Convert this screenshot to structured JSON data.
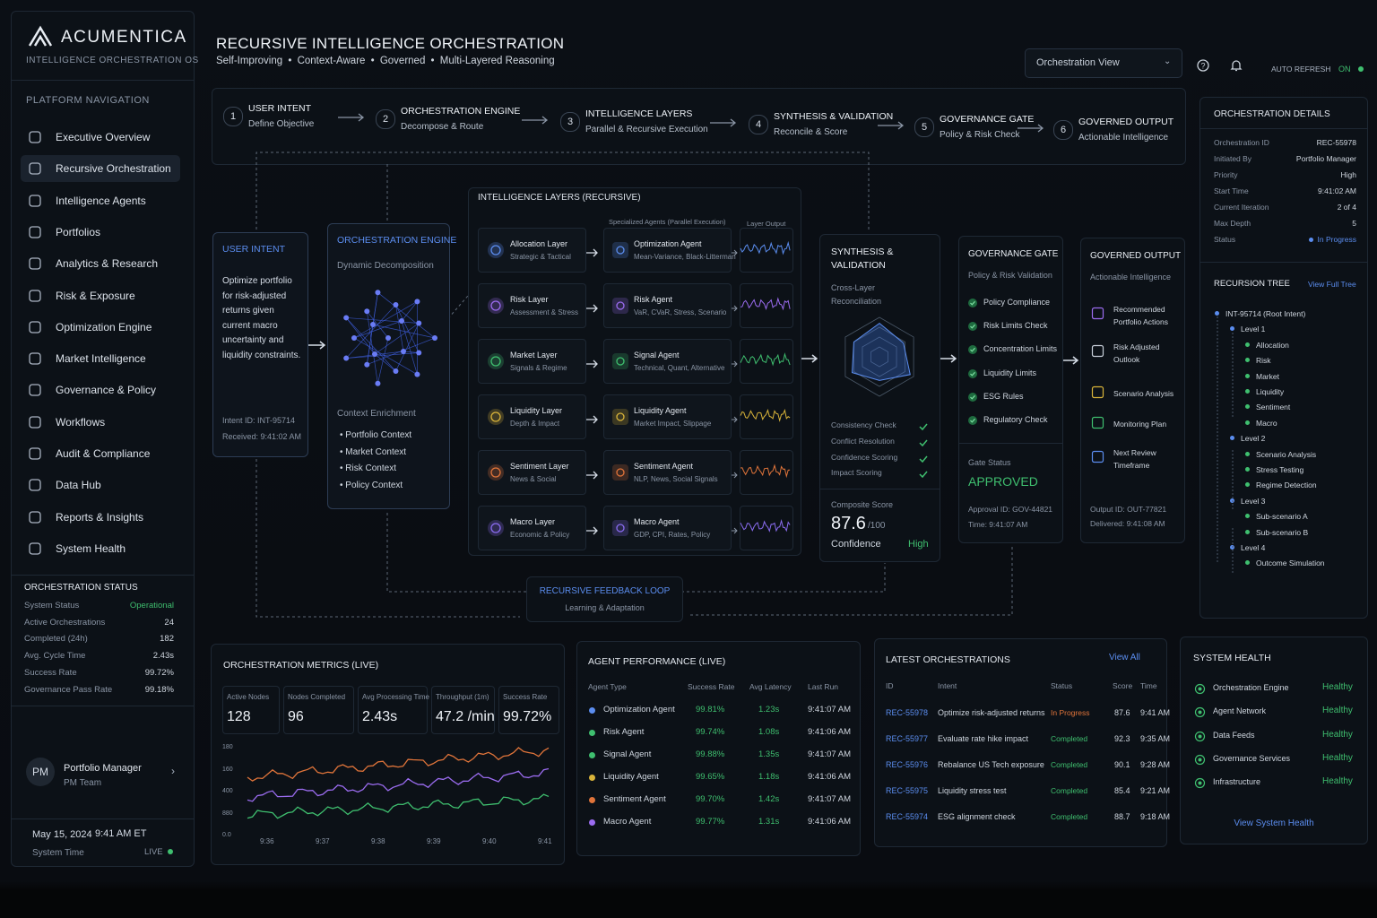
{
  "brand": {
    "name": "ACUMENTICA",
    "tagline": "INTELLIGENCE ORCHESTRATION OS"
  },
  "header": {
    "title": "RECURSIVE INTELLIGENCE ORCHESTRATION",
    "subtitle": [
      "Self-Improving",
      "Context-Aware",
      "Governed",
      "Multi-Layered Reasoning"
    ],
    "view_select": "Orchestration View",
    "auto_refresh": "AUTO REFRESH",
    "auto_refresh_state": "ON"
  },
  "nav": {
    "title": "PLATFORM NAVIGATION",
    "active": 1,
    "items": [
      "Executive Overview",
      "Recursive Orchestration",
      "Intelligence Agents",
      "Portfolios",
      "Analytics & Research",
      "Risk & Exposure",
      "Optimization Engine",
      "Market Intelligence",
      "Governance & Policy",
      "Workflows",
      "Audit & Compliance",
      "Data Hub",
      "Reports & Insights",
      "System Health"
    ]
  },
  "orchestration_status": {
    "title": "ORCHESTRATION STATUS",
    "rows": [
      [
        "System Status",
        "Operational"
      ],
      [
        "Active Orchestrations",
        "24"
      ],
      [
        "Completed (24h)",
        "182"
      ],
      [
        "Avg. Cycle Time",
        "2.43s"
      ],
      [
        "Success Rate",
        "99.72%"
      ],
      [
        "Governance Pass Rate",
        "99.18%"
      ]
    ]
  },
  "user": {
    "initials": "PM",
    "name": "Portfolio Manager",
    "team": "PM Team"
  },
  "system_time": {
    "date": "May 15, 2024",
    "time": "9:41 AM ET",
    "label": "System Time",
    "live": "LIVE"
  },
  "pipeline": [
    {
      "num": 1,
      "title": "USER INTENT",
      "sub": "Define Objective"
    },
    {
      "num": 2,
      "title": "ORCHESTRATION ENGINE",
      "sub": "Decompose & Route"
    },
    {
      "num": 3,
      "title": "INTELLIGENCE LAYERS",
      "sub": "Parallel & Recursive Execution"
    },
    {
      "num": 4,
      "title": "SYNTHESIS & VALIDATION",
      "sub": "Reconcile & Score"
    },
    {
      "num": 5,
      "title": "GOVERNANCE GATE",
      "sub": "Policy & Risk Check"
    },
    {
      "num": 6,
      "title": "GOVERNED OUTPUT",
      "sub": "Actionable Intelligence"
    }
  ],
  "user_intent": {
    "title": "USER INTENT",
    "text": "Optimize portfolio for risk-adjusted returns given current macro uncertainty and liquidity constraints.",
    "intent_id": "Intent ID:  INT-95714",
    "received": "Received:  9:41:02 AM"
  },
  "orchestration_engine": {
    "title": "ORCHESTRATION ENGINE",
    "subtitle": "Dynamic Decomposition",
    "context_title": "Context Enrichment",
    "context_items": [
      "Portfolio Context",
      "Market Context",
      "Risk Context",
      "Policy Context"
    ]
  },
  "intelligence_layers": {
    "title": "INTELLIGENCE LAYERS (RECURSIVE)",
    "agents_header": "Specialized Agents (Parallel Execution)",
    "output_header": "Layer Output",
    "rows": [
      {
        "layer": "Allocation Layer",
        "layer_sub": "Strategic & Tactical",
        "agent": "Optimization Agent",
        "agent_sub": "Mean-Variance, Black-Litterman",
        "color": "#5b8def"
      },
      {
        "layer": "Risk Layer",
        "layer_sub": "Assessment & Stress",
        "agent": "Risk Agent",
        "agent_sub": "VaR, CVaR, Stress, Scenario",
        "color": "#9b6cf0"
      },
      {
        "layer": "Market Layer",
        "layer_sub": "Signals & Regime",
        "agent": "Signal Agent",
        "agent_sub": "Technical, Quant, Alternative",
        "color": "#3fbf6f"
      },
      {
        "layer": "Liquidity Layer",
        "layer_sub": "Depth & Impact",
        "agent": "Liquidity Agent",
        "agent_sub": "Market Impact, Slippage",
        "color": "#d9b43a"
      },
      {
        "layer": "Sentiment Layer",
        "layer_sub": "News & Social",
        "agent": "Sentiment Agent",
        "agent_sub": "NLP, News, Social Signals",
        "color": "#e0743a"
      },
      {
        "layer": "Macro Layer",
        "layer_sub": "Economic & Policy",
        "agent": "Macro Agent",
        "agent_sub": "GDP, CPI, Rates, Policy",
        "color": "#8a6cf0"
      }
    ]
  },
  "synthesis": {
    "title": "SYNTHESIS & VALIDATION",
    "subtitle": "Cross-Layer Reconciliation",
    "checks": [
      "Consistency Check",
      "Conflict Resolution",
      "Confidence Scoring",
      "Impact Scoring"
    ],
    "score_label": "Composite Score",
    "score": 87.6,
    "score_max": "/100",
    "confidence_label": "Confidence",
    "confidence": "High"
  },
  "governance": {
    "title": "GOVERNANCE GATE",
    "subtitle": "Policy & Risk Validation",
    "checks": [
      "Policy Compliance",
      "Risk Limits Check",
      "Concentration Limits",
      "Liquidity Limits",
      "ESG Rules",
      "Regulatory Check"
    ],
    "gate_status_label": "Gate Status",
    "gate_status": "APPROVED",
    "approval_id": "Approval ID:  GOV-44821",
    "time": "Time:  9:41:07 AM"
  },
  "output": {
    "title": "GOVERNED OUTPUT",
    "subtitle": "Actionable Intelligence",
    "items": [
      "Recommended Portfolio Actions",
      "Risk Adjusted Outlook",
      "Scenario Analysis",
      "Monitoring Plan",
      "Next Review Timeframe"
    ],
    "output_id": "Output ID:  OUT-77821",
    "delivered": "Delivered:  9:41:08 AM"
  },
  "feedback": {
    "title": "RECURSIVE FEEDBACK LOOP",
    "subtitle": "Learning & Adaptation"
  },
  "details": {
    "title": "ORCHESTRATION DETAILS",
    "rows": [
      [
        "Orchestration ID",
        "REC-55978"
      ],
      [
        "Initiated By",
        "Portfolio Manager"
      ],
      [
        "Priority",
        "High"
      ],
      [
        "Start Time",
        "9:41:02 AM"
      ],
      [
        "Current Iteration",
        "2 of 4"
      ],
      [
        "Max Depth",
        "5"
      ],
      [
        "Status",
        "In Progress"
      ]
    ],
    "tree_title": "RECURSION TREE",
    "tree_link": "View Full Tree",
    "tree": [
      {
        "label": "INT-95714 (Root Intent)",
        "depth": 0
      },
      {
        "label": "Level 1",
        "depth": 1
      },
      {
        "label": "Allocation",
        "depth": 2
      },
      {
        "label": "Risk",
        "depth": 2
      },
      {
        "label": "Market",
        "depth": 2
      },
      {
        "label": "Liquidity",
        "depth": 2
      },
      {
        "label": "Sentiment",
        "depth": 2
      },
      {
        "label": "Macro",
        "depth": 2
      },
      {
        "label": "Level 2",
        "depth": 1
      },
      {
        "label": "Scenario Analysis",
        "depth": 2
      },
      {
        "label": "Stress Testing",
        "depth": 2
      },
      {
        "label": "Regime Detection",
        "depth": 2
      },
      {
        "label": "Level 3",
        "depth": 1
      },
      {
        "label": "Sub-scenario A",
        "depth": 2
      },
      {
        "label": "Sub-scenario B",
        "depth": 2
      },
      {
        "label": "Level 4",
        "depth": 1
      },
      {
        "label": "Outcome Simulation",
        "depth": 2
      }
    ]
  },
  "metrics": {
    "title": "ORCHESTRATION METRICS (LIVE)",
    "kpis": [
      {
        "label": "Active Nodes",
        "value": "128"
      },
      {
        "label": "Nodes Completed",
        "value": "96"
      },
      {
        "label": "Avg Processing Time",
        "value": "2.43s"
      },
      {
        "label": "Throughput (1m)",
        "value": "47.2 /min"
      },
      {
        "label": "Success Rate",
        "value": "99.72%"
      }
    ],
    "y_labels": [
      "180",
      "160",
      "400",
      "880",
      "0.0"
    ],
    "x_labels": [
      "9:36",
      "9:37",
      "9:38",
      "9:39",
      "9:40",
      "9:41"
    ]
  },
  "agent_performance": {
    "title": "AGENT PERFORMANCE (LIVE)",
    "columns": [
      "Agent Type",
      "Success Rate",
      "Avg Latency",
      "Last Run"
    ],
    "rows": [
      {
        "cells": [
          "Optimization Agent",
          "99.81%",
          "1.23s",
          "9:41:07 AM"
        ],
        "color": "#5b8def"
      },
      {
        "cells": [
          "Risk Agent",
          "99.74%",
          "1.08s",
          "9:41:06 AM"
        ],
        "color": "#3fbf6f"
      },
      {
        "cells": [
          "Signal Agent",
          "99.88%",
          "1.35s",
          "9:41:07 AM"
        ],
        "color": "#3fbf6f"
      },
      {
        "cells": [
          "Liquidity Agent",
          "99.65%",
          "1.18s",
          "9:41:06 AM"
        ],
        "color": "#d9b43a"
      },
      {
        "cells": [
          "Sentiment Agent",
          "99.70%",
          "1.42s",
          "9:41:07 AM"
        ],
        "color": "#e0743a"
      },
      {
        "cells": [
          "Macro Agent",
          "99.77%",
          "1.31s",
          "9:41:06 AM"
        ],
        "color": "#9b6cf0"
      }
    ]
  },
  "latest": {
    "title": "LATEST ORCHESTRATIONS",
    "link": "View All",
    "columns": [
      "ID",
      "Intent",
      "Status",
      "Score",
      "Time"
    ],
    "rows": [
      {
        "cells": [
          "REC-55978",
          "Optimize risk-adjusted returns",
          "In Progress",
          "87.6",
          "9:41 AM"
        ],
        "status_color": "#e0743a"
      },
      {
        "cells": [
          "REC-55977",
          "Evaluate rate hike impact",
          "Completed",
          "92.3",
          "9:35 AM"
        ],
        "status_color": "#3fbf6f"
      },
      {
        "cells": [
          "REC-55976",
          "Rebalance US Tech exposure",
          "Completed",
          "90.1",
          "9:28 AM"
        ],
        "status_color": "#3fbf6f"
      },
      {
        "cells": [
          "REC-55975",
          "Liquidity stress test",
          "Completed",
          "85.4",
          "9:21 AM"
        ],
        "status_color": "#3fbf6f"
      },
      {
        "cells": [
          "REC-55974",
          "ESG alignment check",
          "Completed",
          "88.7",
          "9:18 AM"
        ],
        "status_color": "#3fbf6f"
      }
    ]
  },
  "health": {
    "title": "SYSTEM HEALTH",
    "rows": [
      [
        "Orchestration Engine",
        "Healthy"
      ],
      [
        "Agent Network",
        "Healthy"
      ],
      [
        "Data Feeds",
        "Healthy"
      ],
      [
        "Governance Services",
        "Healthy"
      ],
      [
        "Infrastructure",
        "Healthy"
      ]
    ],
    "link": "View System Health"
  }
}
